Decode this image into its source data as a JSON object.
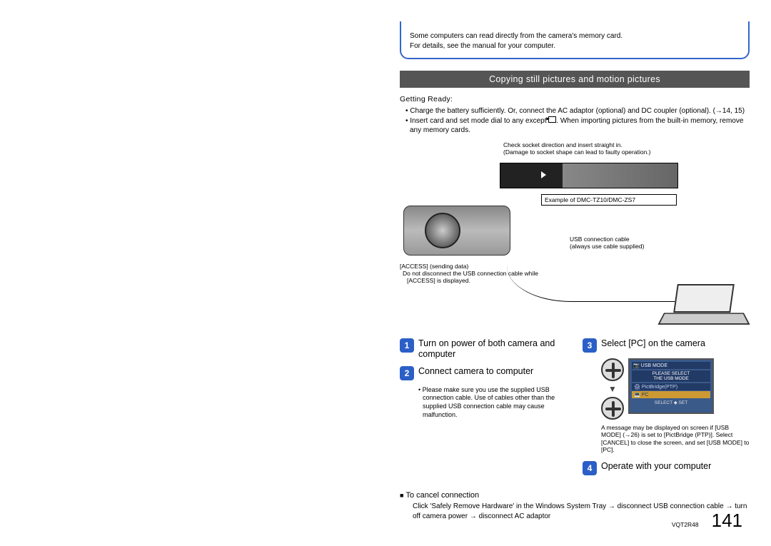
{
  "intro": {
    "line1": "Some computers can read directly from the camera's memory card.",
    "line2": "For details, see the manual for your computer."
  },
  "section_header": "Copying still pictures and motion pictures",
  "getting_ready_label": "Getting Ready:",
  "prep": [
    "Charge the battery sufficiently. Or, connect the AC adaptor (optional) and DC coupler (optional). (→14, 15)",
    "Insert card and set mode dial to any except        . When importing pictures from the built-in memory, remove any memory cards."
  ],
  "diagram": {
    "socket_note1": "Check socket direction and insert straight in.",
    "socket_note2": "(Damage to socket shape can lead to faulty operation.)",
    "example_label": "Example of DMC-TZ10/DMC-ZS7",
    "access_title": "[ACCESS] (sending data)",
    "access_bullet": "Do not disconnect the USB connection cable while [ACCESS] is displayed.",
    "usb_cable1": "USB connection cable",
    "usb_cable2": "(always use cable supplied)"
  },
  "steps": {
    "s1": {
      "num": "1",
      "title": "Turn on power of both camera and computer"
    },
    "s2": {
      "num": "2",
      "title": "Connect camera to computer",
      "note": "Please make sure you use the supplied USB connection cable. Use of cables other than the supplied USB connection cable may cause malfunction."
    },
    "s3": {
      "num": "3",
      "title": "Select [PC] on the camera"
    },
    "s4": {
      "num": "4",
      "title": "Operate with your computer"
    }
  },
  "lcd": {
    "header": "📷 USB MODE",
    "msg1": "PLEASE SELECT",
    "msg2": "THE USB MODE",
    "opt1": "PictBridge(PTP)",
    "opt2": "PC",
    "footer": "SELECT ◆ SET"
  },
  "msg_note": "A message may be displayed on screen if [USB MODE] (→26) is set to [PictBridge (PTP)]. Select [CANCEL] to close the screen, and set [USB MODE] to [PC].",
  "cancel": {
    "title": "To cancel connection",
    "body": "Click 'Safely Remove Hardware' in the Windows System Tray → disconnect USB connection cable → turn off camera power → disconnect AC adaptor"
  },
  "footer": {
    "doc_code": "VQT2R48",
    "page": "141"
  },
  "colors": {
    "box_border": "#3366cc",
    "header_bg": "#555555",
    "step_icon_bg": "#2b5fc7",
    "lcd_bg": "#3a5a8a",
    "lcd_highlight": "#cc9933"
  }
}
